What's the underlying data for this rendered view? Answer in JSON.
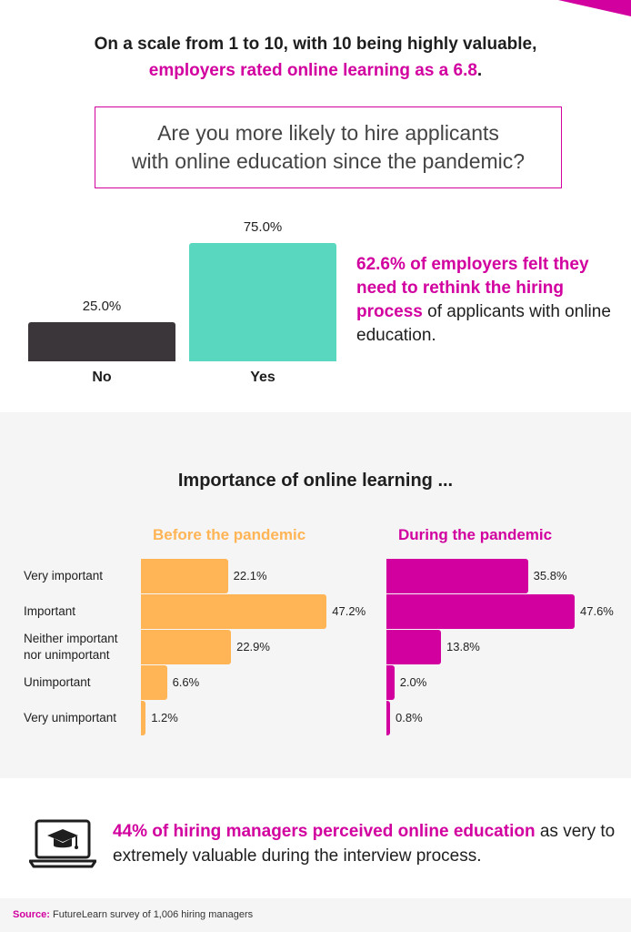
{
  "headline": {
    "line1": "On a scale from 1 to 10, with 10 being highly valuable,",
    "line2": "employers rated online learning as a 6.8",
    "line2_end": "."
  },
  "question": {
    "line1": "Are you more likely to hire applicants",
    "line2": "with online education since the pandemic?"
  },
  "stat": {
    "highlight": "62.6% of employers felt they need to rethink the hiring process",
    "rest": " of applicants with online education."
  },
  "importance_title": "Importance of online learning ...",
  "footer": {
    "highlight": "44% of hiring managers perceived online education",
    "rest": " as very to extremely valuable during the interview process.",
    "icon": "laptop-graduation-cap-icon"
  },
  "source": {
    "label": "Source:",
    "text": " FutureLearn survey of 1,006 hiring managers"
  },
  "colors": {
    "magenta": "#d1009f",
    "teal": "#5ad8bf",
    "dark": "#3a3639",
    "orange": "#ffb455"
  },
  "chart_data": [
    {
      "type": "bar",
      "title": "Are you more likely to hire applicants with online education since the pandemic?",
      "categories": [
        "No",
        "Yes"
      ],
      "values": [
        25.0,
        75.0
      ],
      "value_labels": [
        "25.0%",
        "75.0%"
      ],
      "colors": [
        "#3a3639",
        "#5ad8bf"
      ]
    },
    {
      "type": "bar",
      "orientation": "horizontal",
      "title": "Importance of online learning ...",
      "categories": [
        "Very important",
        "Important",
        "Neither important nor unimportant",
        "Unimportant",
        "Very unimportant"
      ],
      "series": [
        {
          "name": "Before the pandemic",
          "values": [
            22.1,
            47.2,
            22.9,
            6.6,
            1.2
          ],
          "value_labels": [
            "22.1%",
            "47.2%",
            "22.9%",
            "6.6%",
            "1.2%"
          ],
          "color": "#ffb455"
        },
        {
          "name": "During the pandemic",
          "values": [
            35.8,
            47.6,
            13.8,
            2.0,
            0.8
          ],
          "value_labels": [
            "35.8%",
            "47.6%",
            "13.8%",
            "2.0%",
            "0.8%"
          ],
          "color": "#d1009f"
        }
      ]
    }
  ]
}
